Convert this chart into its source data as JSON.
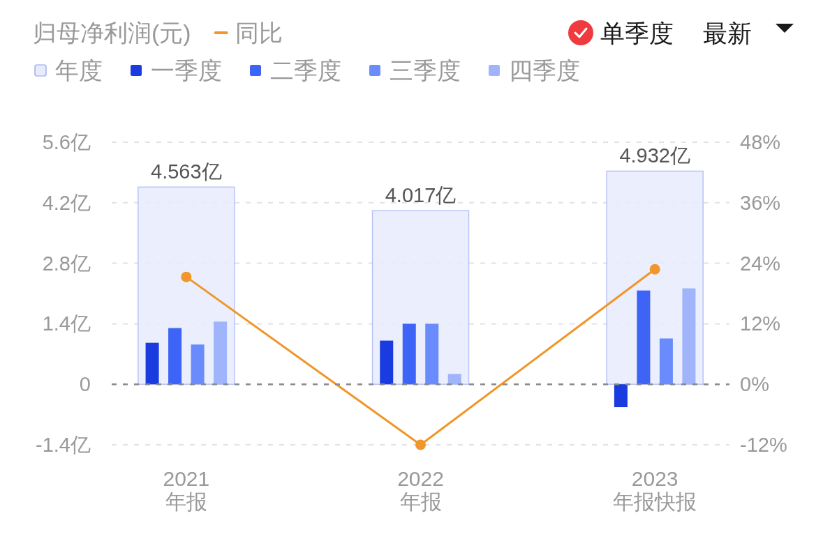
{
  "chart_data": {
    "type": "bar",
    "title": "归母净利润(元)",
    "categories": [
      "2021\n年报",
      "2022\n年报",
      "2023\n年报快报"
    ],
    "series": [
      {
        "name": "年度",
        "color": "#e8ebfc",
        "values": [
          4.563,
          4.017,
          4.932
        ],
        "value_labels": [
          "4.563亿",
          "4.017亿",
          "4.932亿"
        ]
      },
      {
        "name": "一季度",
        "color": "#1a3be0",
        "values": [
          0.96,
          1.01,
          -0.53
        ]
      },
      {
        "name": "二季度",
        "color": "#3d63f7",
        "values": [
          1.3,
          1.4,
          2.17
        ]
      },
      {
        "name": "三季度",
        "color": "#6a8bfb",
        "values": [
          0.92,
          1.4,
          1.06
        ]
      },
      {
        "name": "四季度",
        "color": "#a0b4fc",
        "values": [
          1.45,
          0.24,
          2.22
        ]
      },
      {
        "name": "同比",
        "type": "line",
        "axis": "y2",
        "color": "#f0962a",
        "values": [
          21.3,
          -12.0,
          22.8
        ]
      }
    ],
    "ylim": [
      -1.4,
      5.6
    ],
    "yticks": [
      {
        "value": -1.4,
        "label": "-1.4亿"
      },
      0,
      {
        "value": 1.4,
        "label": "1.4亿"
      },
      {
        "value": 2.8,
        "label": "2.8亿"
      },
      {
        "value": 4.2,
        "label": "4.2亿"
      },
      {
        "value": 5.6,
        "label": "5.6亿"
      }
    ],
    "y2lim": [
      -12,
      48
    ],
    "y2ticks": [
      {
        "value": -12,
        "label": "-12%"
      },
      {
        "value": 0,
        "label": "0%"
      },
      {
        "value": 12,
        "label": "12%"
      },
      {
        "value": 24,
        "label": "24%"
      },
      {
        "value": 36,
        "label": "36%"
      },
      {
        "value": 48,
        "label": "48%"
      }
    ],
    "ref_lines": [
      {
        "axis": "y",
        "value": 0,
        "color": "#8a8a8a",
        "line_style": "dashed"
      }
    ],
    "grid": "y",
    "legend": "top left",
    "marker": "circle",
    "line_style": "solid",
    "annotations": [
      "单季度",
      "最新"
    ]
  }
}
